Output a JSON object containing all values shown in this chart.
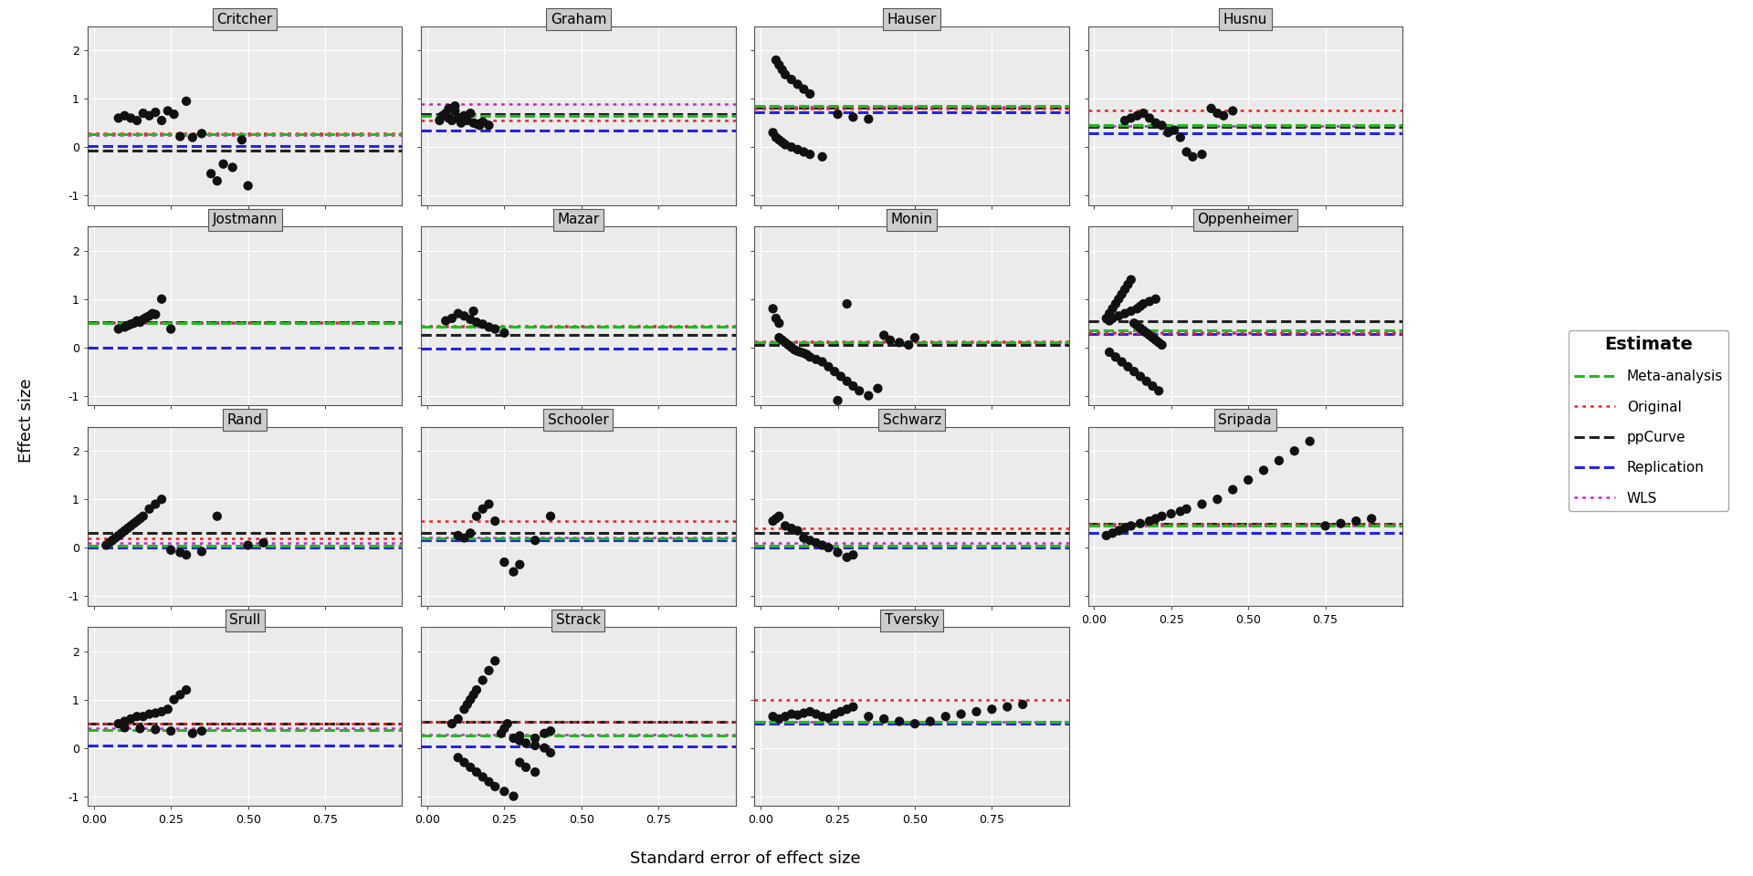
{
  "panels": [
    {
      "name": "Critcher",
      "points_x": [
        0.08,
        0.1,
        0.12,
        0.14,
        0.16,
        0.18,
        0.2,
        0.22,
        0.24,
        0.26,
        0.28,
        0.3,
        0.32,
        0.35,
        0.38,
        0.4,
        0.42,
        0.45,
        0.48,
        0.5
      ],
      "points_y": [
        0.6,
        0.65,
        0.6,
        0.55,
        0.7,
        0.65,
        0.72,
        0.55,
        0.75,
        0.68,
        0.22,
        0.95,
        0.2,
        0.28,
        -0.55,
        -0.7,
        -0.35,
        -0.42,
        0.15,
        -0.8
      ],
      "meta": 0.27,
      "original": 0.28,
      "ppcurve": -0.08,
      "replication": 0.02,
      "wls": 0.25
    },
    {
      "name": "Graham",
      "points_x": [
        0.04,
        0.05,
        0.06,
        0.07,
        0.07,
        0.08,
        0.09,
        0.09,
        0.1,
        0.11,
        0.12,
        0.13,
        0.14,
        0.15,
        0.16,
        0.17,
        0.18,
        0.2
      ],
      "points_y": [
        0.55,
        0.65,
        0.7,
        0.6,
        0.8,
        0.55,
        0.75,
        0.85,
        0.6,
        0.5,
        0.65,
        0.55,
        0.7,
        0.5,
        0.48,
        0.45,
        0.52,
        0.45
      ],
      "meta": 0.65,
      "original": 0.55,
      "ppcurve": 0.68,
      "replication": 0.35,
      "wls": 0.9
    },
    {
      "name": "Hauser",
      "points_x": [
        0.04,
        0.05,
        0.06,
        0.07,
        0.08,
        0.1,
        0.12,
        0.14,
        0.16,
        0.2,
        0.25,
        0.3,
        0.35,
        0.05,
        0.06,
        0.07,
        0.08,
        0.1,
        0.12,
        0.14,
        0.16
      ],
      "points_y": [
        0.3,
        0.2,
        0.15,
        0.1,
        0.05,
        0.0,
        -0.05,
        -0.1,
        -0.15,
        -0.2,
        0.68,
        0.62,
        0.58,
        1.8,
        1.7,
        1.6,
        1.5,
        1.4,
        1.3,
        1.2,
        1.1
      ],
      "meta": 0.85,
      "original": 0.8,
      "ppcurve": 0.82,
      "replication": 0.73,
      "wls": 0.84
    },
    {
      "name": "Husnu",
      "points_x": [
        0.1,
        0.12,
        0.14,
        0.16,
        0.18,
        0.2,
        0.22,
        0.24,
        0.26,
        0.28,
        0.3,
        0.32,
        0.35,
        0.38,
        0.4,
        0.42,
        0.45
      ],
      "points_y": [
        0.55,
        0.6,
        0.65,
        0.7,
        0.6,
        0.5,
        0.45,
        0.3,
        0.35,
        0.2,
        -0.1,
        -0.2,
        -0.15,
        0.8,
        0.7,
        0.65,
        0.75
      ],
      "meta": 0.45,
      "original": 0.75,
      "ppcurve": 0.42,
      "replication": 0.28,
      "wls": 0.44
    },
    {
      "name": "Jostmann",
      "points_x": [
        0.08,
        0.1,
        0.11,
        0.12,
        0.13,
        0.14,
        0.15,
        0.16,
        0.17,
        0.18,
        0.19,
        0.2,
        0.22,
        0.25
      ],
      "points_y": [
        0.38,
        0.42,
        0.45,
        0.48,
        0.5,
        0.55,
        0.52,
        0.58,
        0.62,
        0.65,
        0.7,
        0.68,
        1.0,
        0.38
      ],
      "meta": 0.5,
      "original": 0.53,
      "ppcurve": 0.52,
      "replication": 0.0,
      "wls": 0.51
    },
    {
      "name": "Mazar",
      "points_x": [
        0.06,
        0.08,
        0.1,
        0.12,
        0.14,
        0.15,
        0.16,
        0.18,
        0.2,
        0.22,
        0.25
      ],
      "points_y": [
        0.55,
        0.6,
        0.7,
        0.65,
        0.58,
        0.75,
        0.52,
        0.48,
        0.42,
        0.38,
        0.3
      ],
      "meta": 0.42,
      "original": 0.45,
      "ppcurve": 0.25,
      "replication": -0.02,
      "wls": 0.42
    },
    {
      "name": "Monin",
      "points_x": [
        0.04,
        0.05,
        0.06,
        0.06,
        0.07,
        0.08,
        0.09,
        0.1,
        0.11,
        0.12,
        0.13,
        0.14,
        0.15,
        0.16,
        0.18,
        0.2,
        0.22,
        0.24,
        0.26,
        0.28,
        0.3,
        0.32,
        0.35,
        0.38,
        0.4,
        0.42,
        0.45,
        0.48,
        0.5,
        0.25,
        0.28
      ],
      "points_y": [
        0.8,
        0.6,
        0.5,
        0.2,
        0.15,
        0.1,
        0.05,
        0.0,
        -0.05,
        -0.08,
        -0.1,
        -0.12,
        -0.15,
        -0.2,
        -0.25,
        -0.3,
        -0.4,
        -0.5,
        -0.6,
        -0.7,
        -0.8,
        -0.9,
        -1.0,
        -0.85,
        0.25,
        0.15,
        0.1,
        0.05,
        0.2,
        -1.1,
        0.9
      ],
      "meta": 0.1,
      "original": 0.12,
      "ppcurve": 0.05,
      "replication": 0.07,
      "wls": 0.1
    },
    {
      "name": "Oppenheimer",
      "points_x": [
        0.04,
        0.05,
        0.06,
        0.07,
        0.08,
        0.09,
        0.1,
        0.11,
        0.12,
        0.13,
        0.14,
        0.15,
        0.16,
        0.17,
        0.18,
        0.19,
        0.2,
        0.21,
        0.22,
        0.05,
        0.06,
        0.08,
        0.1,
        0.12,
        0.14,
        0.15,
        0.16,
        0.18,
        0.2,
        0.05,
        0.07,
        0.09,
        0.11,
        0.13,
        0.15,
        0.17,
        0.19,
        0.21
      ],
      "points_y": [
        0.6,
        0.7,
        0.8,
        0.9,
        1.0,
        1.1,
        1.2,
        1.3,
        1.4,
        0.5,
        0.45,
        0.4,
        0.35,
        0.3,
        0.25,
        0.2,
        0.15,
        0.1,
        0.05,
        0.55,
        0.6,
        0.65,
        0.7,
        0.75,
        0.8,
        0.85,
        0.9,
        0.95,
        1.0,
        -0.1,
        -0.2,
        -0.3,
        -0.4,
        -0.5,
        -0.6,
        -0.7,
        -0.8,
        -0.9
      ],
      "meta": 0.35,
      "original": 0.3,
      "ppcurve": 0.55,
      "replication": 0.28,
      "wls": 0.32
    },
    {
      "name": "Rand",
      "points_x": [
        0.04,
        0.05,
        0.06,
        0.07,
        0.08,
        0.09,
        0.1,
        0.11,
        0.12,
        0.13,
        0.14,
        0.15,
        0.16,
        0.18,
        0.2,
        0.22,
        0.25,
        0.28,
        0.3,
        0.35,
        0.4,
        0.5,
        0.55
      ],
      "points_y": [
        0.05,
        0.1,
        0.15,
        0.2,
        0.25,
        0.3,
        0.35,
        0.4,
        0.45,
        0.5,
        0.55,
        0.6,
        0.65,
        0.8,
        0.9,
        1.0,
        -0.05,
        -0.1,
        -0.15,
        -0.08,
        0.65,
        0.05,
        0.1
      ],
      "meta": 0.05,
      "original": 0.2,
      "ppcurve": 0.3,
      "replication": 0.0,
      "wls": 0.1
    },
    {
      "name": "Schooler",
      "points_x": [
        0.1,
        0.12,
        0.14,
        0.16,
        0.18,
        0.2,
        0.22,
        0.25,
        0.28,
        0.3,
        0.35,
        0.4
      ],
      "points_y": [
        0.25,
        0.2,
        0.3,
        0.65,
        0.8,
        0.9,
        0.55,
        -0.3,
        -0.5,
        -0.35,
        0.15,
        0.65
      ],
      "meta": 0.2,
      "original": 0.55,
      "ppcurve": 0.3,
      "replication": 0.15,
      "wls": 0.22
    },
    {
      "name": "Schwarz",
      "points_x": [
        0.04,
        0.05,
        0.06,
        0.08,
        0.1,
        0.12,
        0.14,
        0.16,
        0.18,
        0.2,
        0.22,
        0.25,
        0.28,
        0.3
      ],
      "points_y": [
        0.55,
        0.6,
        0.65,
        0.45,
        0.4,
        0.35,
        0.2,
        0.15,
        0.1,
        0.05,
        0.0,
        -0.1,
        -0.2,
        -0.15
      ],
      "meta": 0.05,
      "original": 0.4,
      "ppcurve": 0.3,
      "replication": 0.0,
      "wls": 0.1
    },
    {
      "name": "Sripada",
      "points_x": [
        0.04,
        0.06,
        0.08,
        0.1,
        0.12,
        0.15,
        0.18,
        0.2,
        0.22,
        0.25,
        0.28,
        0.3,
        0.35,
        0.4,
        0.45,
        0.5,
        0.55,
        0.6,
        0.65,
        0.7,
        0.75,
        0.8,
        0.85,
        0.9
      ],
      "points_y": [
        0.25,
        0.3,
        0.35,
        0.4,
        0.45,
        0.5,
        0.55,
        0.6,
        0.65,
        0.7,
        0.75,
        0.8,
        0.9,
        1.0,
        1.2,
        1.4,
        1.6,
        1.8,
        2.0,
        2.2,
        0.45,
        0.5,
        0.55,
        0.6
      ],
      "meta": 0.45,
      "original": 0.5,
      "ppcurve": 0.5,
      "replication": 0.3,
      "wls": 0.45
    },
    {
      "name": "Srull",
      "points_x": [
        0.08,
        0.1,
        0.12,
        0.14,
        0.16,
        0.18,
        0.2,
        0.22,
        0.24,
        0.26,
        0.28,
        0.3,
        0.32,
        0.35,
        0.1,
        0.15,
        0.2,
        0.25
      ],
      "points_y": [
        0.5,
        0.55,
        0.6,
        0.65,
        0.65,
        0.7,
        0.72,
        0.75,
        0.8,
        1.0,
        1.1,
        1.2,
        0.3,
        0.35,
        0.42,
        0.4,
        0.38,
        0.35
      ],
      "meta": 0.38,
      "original": 0.5,
      "ppcurve": 0.5,
      "replication": 0.05,
      "wls": 0.4
    },
    {
      "name": "Strack",
      "points_x": [
        0.08,
        0.1,
        0.12,
        0.13,
        0.14,
        0.15,
        0.16,
        0.18,
        0.2,
        0.22,
        0.24,
        0.25,
        0.26,
        0.28,
        0.3,
        0.32,
        0.35,
        0.38,
        0.4,
        0.1,
        0.12,
        0.14,
        0.16,
        0.18,
        0.2,
        0.22,
        0.25,
        0.28,
        0.3,
        0.35,
        0.38,
        0.4,
        0.3,
        0.32,
        0.35
      ],
      "points_y": [
        0.5,
        0.6,
        0.8,
        0.9,
        1.0,
        1.1,
        1.2,
        1.4,
        1.6,
        1.8,
        0.3,
        0.4,
        0.5,
        0.2,
        0.15,
        0.1,
        0.05,
        0.0,
        -0.1,
        -0.2,
        -0.3,
        -0.4,
        -0.5,
        -0.6,
        -0.7,
        -0.8,
        -0.9,
        -1.0,
        0.25,
        0.2,
        0.3,
        0.35,
        -0.3,
        -0.4,
        -0.5
      ],
      "meta": 0.25,
      "original": 0.55,
      "ppcurve": 0.55,
      "replication": 0.03,
      "wls": 0.28
    },
    {
      "name": "Tversky",
      "points_x": [
        0.04,
        0.06,
        0.08,
        0.1,
        0.12,
        0.14,
        0.16,
        0.18,
        0.2,
        0.22,
        0.24,
        0.26,
        0.28,
        0.3,
        0.35,
        0.4,
        0.45,
        0.5,
        0.55,
        0.6,
        0.65,
        0.7,
        0.75,
        0.8,
        0.85
      ],
      "points_y": [
        0.65,
        0.6,
        0.65,
        0.7,
        0.68,
        0.72,
        0.75,
        0.7,
        0.65,
        0.62,
        0.7,
        0.75,
        0.8,
        0.85,
        0.65,
        0.6,
        0.55,
        0.5,
        0.55,
        0.65,
        0.7,
        0.75,
        0.8,
        0.85,
        0.9
      ],
      "meta": 0.55,
      "original": 1.0,
      "ppcurve": 0.55,
      "replication": 0.5,
      "wls": 0.55
    }
  ],
  "layout": {
    "ylim": [
      -1.2,
      2.5
    ],
    "xlim": [
      -0.02,
      1.0
    ],
    "yticks": [
      -1,
      0,
      1,
      2
    ],
    "xticks": [
      0.0,
      0.25,
      0.5,
      0.75
    ]
  },
  "colors": {
    "meta": "#22BB22",
    "original": "#EE2222",
    "ppcurve": "#222222",
    "replication": "#2222EE",
    "wls": "#CC22CC",
    "panel_bg": "#EBEBEB",
    "panel_title_bg": "#CCCCCC",
    "dot": "#111111",
    "grid": "#FFFFFF"
  },
  "legend": {
    "title": "Estimate",
    "entries": [
      "Meta-analysis",
      "Original",
      "ppCurve",
      "Replication",
      "WLS"
    ]
  },
  "axis_labels": {
    "x": "Standard error of effect size",
    "y": "Effect size"
  }
}
